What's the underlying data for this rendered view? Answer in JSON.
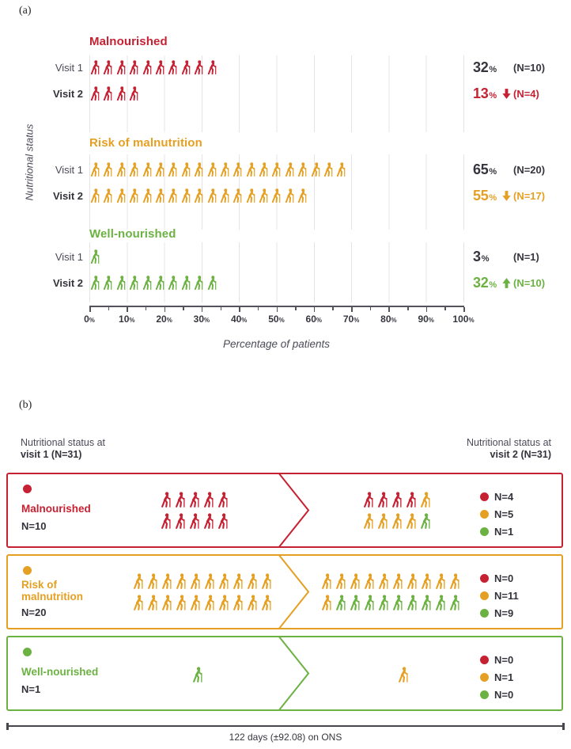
{
  "colors": {
    "red": "#c62132",
    "orange": "#e5a023",
    "green": "#6cb243",
    "dark": "#35353e"
  },
  "panel_a": {
    "tag": "(a)",
    "y_axis_label": "Nutritional status",
    "x_axis_label": "Percentage of patients"
  },
  "panel_b": {
    "tag": "(b)",
    "left_header_line1": "Nutritional status at",
    "left_header_line2": "visit 1 (N=31)",
    "right_header_line1": "Nutritional status at",
    "right_header_line2": "visit 2 (N=31)",
    "footer": "122 days (±92.08) on ONS"
  },
  "chart_data": [
    {
      "type": "pictogram_bar",
      "title": "",
      "ylabel": "Nutritional status",
      "xlabel": "Percentage of patients",
      "x_range": [
        0,
        100
      ],
      "x_ticks": [
        "0",
        "10",
        "20",
        "30",
        "40",
        "50",
        "60",
        "70",
        "80",
        "90",
        "100"
      ],
      "x_unit": "%",
      "grid": true,
      "sections": [
        {
          "title": "Malnourished",
          "color": "red",
          "rows": [
            {
              "label": "Visit 1",
              "label_bold": false,
              "icons": [
                [
                  "red",
                  10
                ]
              ],
              "percent": "32",
              "trend": "",
              "n_label": "(N=10)",
              "value_color": "dark"
            },
            {
              "label": "Visit 2",
              "label_bold": true,
              "icons": [
                [
                  "red",
                  4
                ]
              ],
              "percent": "13",
              "trend": "down",
              "n_label": "(N=4)",
              "value_color": "red"
            }
          ]
        },
        {
          "title": "Risk of malnutrition",
          "color": "orange",
          "rows": [
            {
              "label": "Visit 1",
              "label_bold": false,
              "icons": [
                [
                  "orange",
                  20
                ]
              ],
              "percent": "65",
              "trend": "",
              "n_label": "(N=20)",
              "value_color": "dark"
            },
            {
              "label": "Visit 2",
              "label_bold": true,
              "icons": [
                [
                  "orange",
                  17
                ]
              ],
              "percent": "55",
              "trend": "down",
              "n_label": "(N=17)",
              "value_color": "orange"
            }
          ]
        },
        {
          "title": "Well-nourished",
          "color": "green",
          "rows": [
            {
              "label": "Visit 1",
              "label_bold": false,
              "icons": [
                [
                  "green",
                  1
                ]
              ],
              "percent": "3",
              "trend": "",
              "n_label": "(N=1)",
              "value_color": "dark"
            },
            {
              "label": "Visit 2",
              "label_bold": true,
              "icons": [
                [
                  "green",
                  10
                ]
              ],
              "percent": "32",
              "trend": "up",
              "n_label": "(N=10)",
              "value_color": "green"
            }
          ]
        }
      ]
    },
    {
      "type": "flow",
      "footer": "122 days (±92.08) on ONS",
      "rows": [
        {
          "status_lines": [
            "Malnourished"
          ],
          "color": "red",
          "n_label": "N=10",
          "visit1_rows": [
            [
              [
                "red",
                5
              ]
            ],
            [
              [
                "red",
                5
              ]
            ]
          ],
          "visit2_rows": [
            [
              [
                "red",
                4
              ],
              [
                "orange",
                1
              ]
            ],
            [
              [
                "orange",
                4
              ],
              [
                "green",
                1
              ]
            ]
          ],
          "legend": [
            [
              "red",
              "N=4"
            ],
            [
              "orange",
              "N=5"
            ],
            [
              "green",
              "N=1"
            ]
          ]
        },
        {
          "status_lines": [
            "Risk of",
            "malnutrition"
          ],
          "color": "orange",
          "n_label": "N=20",
          "visit1_rows": [
            [
              [
                "orange",
                10
              ]
            ],
            [
              [
                "orange",
                10
              ]
            ]
          ],
          "visit2_rows": [
            [
              [
                "orange",
                10
              ]
            ],
            [
              [
                "orange",
                1
              ],
              [
                "green",
                9
              ]
            ]
          ],
          "legend": [
            [
              "red",
              "N=0"
            ],
            [
              "orange",
              "N=11"
            ],
            [
              "green",
              "N=9"
            ]
          ]
        },
        {
          "status_lines": [
            "Well-nourished"
          ],
          "color": "green",
          "n_label": "N=1",
          "visit1_rows": [
            [
              [
                "green",
                1
              ]
            ]
          ],
          "visit2_rows": [
            [
              [
                "orange",
                1
              ]
            ]
          ],
          "legend": [
            [
              "red",
              "N=0"
            ],
            [
              "orange",
              "N=1"
            ],
            [
              "green",
              "N=0"
            ]
          ]
        }
      ]
    }
  ]
}
